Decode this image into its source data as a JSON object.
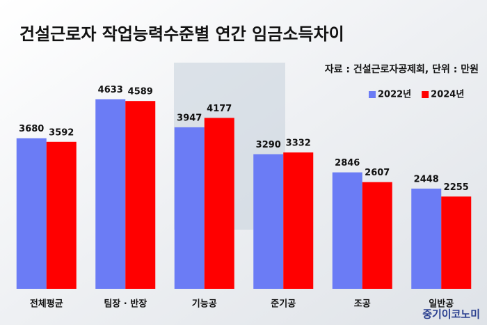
{
  "chart_data": {
    "type": "bar",
    "title": "건설근로자 작업능력수준별 연간 임금소득차이",
    "subtitle": "자료 : 건설근로자공제회, 단위 : 만원",
    "categories": [
      "전체평균",
      "팀장 · 반장",
      "기능공",
      "준기공",
      "조공",
      "일반공"
    ],
    "series": [
      {
        "name": "2022년",
        "color": "#6b7cf5",
        "values": [
          3680,
          4633,
          3947,
          3290,
          2846,
          2448
        ]
      },
      {
        "name": "2024년",
        "color": "#ff0000",
        "values": [
          3592,
          4589,
          4177,
          3332,
          2607,
          2255
        ]
      }
    ],
    "legend": "top-right",
    "watermark": "중기이코노미"
  }
}
